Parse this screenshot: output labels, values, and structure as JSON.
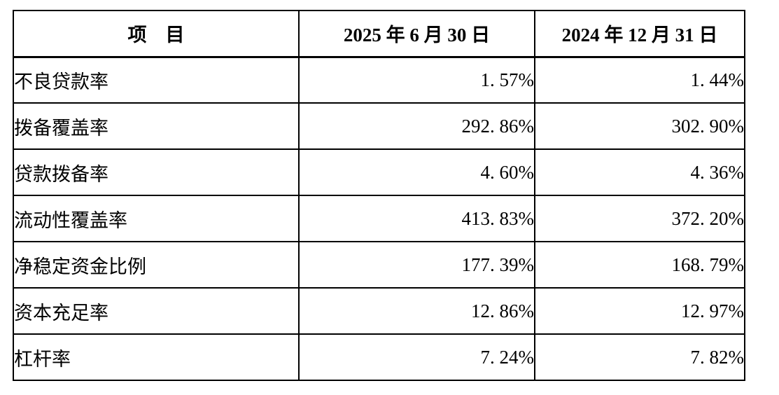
{
  "table": {
    "columns": [
      {
        "label": "项　目"
      },
      {
        "label": "2025 年 6 月 30 日"
      },
      {
        "label": "2024 年 12 月 31 日"
      }
    ],
    "rows": [
      {
        "label": "不良贷款率",
        "v2025": "1. 57%",
        "v2024": "1. 44%"
      },
      {
        "label": "拨备覆盖率",
        "v2025": "292. 86%",
        "v2024": "302. 90%"
      },
      {
        "label": "贷款拨备率",
        "v2025": "4. 60%",
        "v2024": "4. 36%"
      },
      {
        "label": "流动性覆盖率",
        "v2025": "413. 83%",
        "v2024": "372. 20%"
      },
      {
        "label": "净稳定资金比例",
        "v2025": "177. 39%",
        "v2024": "168. 79%"
      },
      {
        "label": "资本充足率",
        "v2025": "12. 86%",
        "v2024": "12. 97%"
      },
      {
        "label": "杠杆率",
        "v2025": "7. 24%",
        "v2024": "7. 82%"
      }
    ],
    "colors": {
      "border": "#000000",
      "text": "#000000",
      "background": "#ffffff"
    }
  }
}
